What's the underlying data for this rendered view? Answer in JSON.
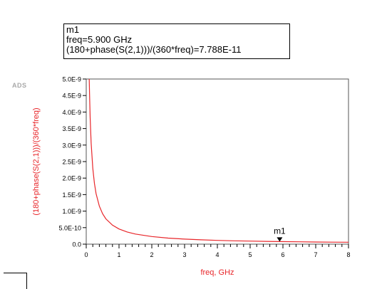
{
  "app_tag": "ADS",
  "marker_readout": {
    "name": "m1",
    "freq_line": "freq=5.900 GHz",
    "value_line": "(180+phase(S(2,1)))/(360*freq)=7.788E-11"
  },
  "chart_data": {
    "type": "line",
    "xlabel": "freq, GHz",
    "ylabel": "(180+phase(S(2,1)))/(360*freq)",
    "xlim": [
      0,
      8
    ],
    "ylim": [
      0,
      5e-09
    ],
    "x_ticks": [
      "0",
      "1",
      "2",
      "3",
      "4",
      "5",
      "6",
      "7",
      "8"
    ],
    "y_ticks": [
      "0.0",
      "5.0E-10",
      "1.0E-9",
      "1.5E-9",
      "2.0E-9",
      "2.5E-9",
      "3.0E-9",
      "3.5E-9",
      "4.0E-9",
      "4.5E-9",
      "5.0E-9"
    ],
    "grid": false,
    "series": [
      {
        "color": "#e8262a",
        "x": [
          0.09,
          0.1,
          0.12,
          0.15,
          0.2,
          0.25,
          0.3,
          0.4,
          0.5,
          0.6,
          0.8,
          1.0,
          1.25,
          1.5,
          2.0,
          2.5,
          3.0,
          3.5,
          4.0,
          4.5,
          5.0,
          5.5,
          5.9,
          6.5,
          7.0,
          7.5,
          8.0
        ],
        "y": [
          5.1e-09,
          4.6e-09,
          3.83e-09,
          3.06e-09,
          2.3e-09,
          1.84e-09,
          1.53e-09,
          1.15e-09,
          9.2e-10,
          7.66e-10,
          5.75e-10,
          4.6e-10,
          3.68e-10,
          3.06e-10,
          2.3e-10,
          1.84e-10,
          1.53e-10,
          1.31e-10,
          1.15e-10,
          1.02e-10,
          9.2e-11,
          8.36e-11,
          7.788e-11,
          7.07e-11,
          6.57e-11,
          6.13e-11,
          5.75e-11
        ]
      }
    ],
    "marker": {
      "label": "m1",
      "x": 5.9,
      "y": 7.788e-11
    },
    "colors": {
      "axis_label": "#e8262a",
      "trace": "#e8262a",
      "axes": "#000000"
    }
  }
}
